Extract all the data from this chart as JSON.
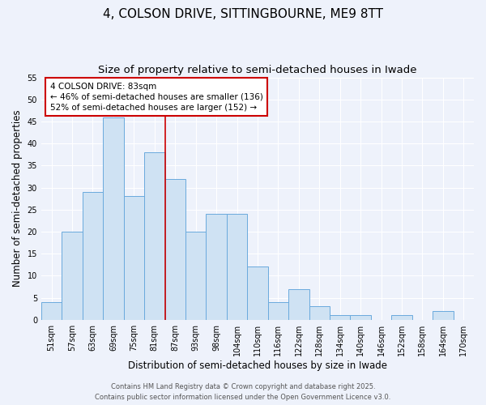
{
  "title_line1": "4, COLSON DRIVE, SITTINGBOURNE, ME9 8TT",
  "title_line2": "Size of property relative to semi-detached houses in Iwade",
  "xlabel": "Distribution of semi-detached houses by size in Iwade",
  "ylabel": "Number of semi-detached properties",
  "bar_labels": [
    "51sqm",
    "57sqm",
    "63sqm",
    "69sqm",
    "75sqm",
    "81sqm",
    "87sqm",
    "93sqm",
    "98sqm",
    "104sqm",
    "110sqm",
    "116sqm",
    "122sqm",
    "128sqm",
    "134sqm",
    "140sqm",
    "146sqm",
    "152sqm",
    "158sqm",
    "164sqm",
    "170sqm"
  ],
  "bar_heights": [
    4,
    20,
    29,
    46,
    28,
    38,
    32,
    20,
    24,
    24,
    12,
    4,
    7,
    3,
    1,
    1,
    0,
    1,
    0,
    2,
    0
  ],
  "bar_color": "#cfe2f3",
  "bar_edge_color": "#6aaadd",
  "bg_color": "#eef2fb",
  "grid_color": "#ffffff",
  "red_line_x": 5.5,
  "annotation_title": "4 COLSON DRIVE: 83sqm",
  "annotation_line2": "← 46% of semi-detached houses are smaller (136)",
  "annotation_line3": "52% of semi-detached houses are larger (152) →",
  "annotation_box_facecolor": "#ffffff",
  "annotation_box_edgecolor": "#cc0000",
  "ylim": [
    0,
    55
  ],
  "yticks": [
    0,
    5,
    10,
    15,
    20,
    25,
    30,
    35,
    40,
    45,
    50,
    55
  ],
  "footer_line1": "Contains HM Land Registry data © Crown copyright and database right 2025.",
  "footer_line2": "Contains public sector information licensed under the Open Government Licence v3.0.",
  "title_fontsize": 11,
  "subtitle_fontsize": 9.5,
  "axis_label_fontsize": 8.5,
  "tick_fontsize": 7,
  "annotation_fontsize": 7.5,
  "footer_fontsize": 6
}
